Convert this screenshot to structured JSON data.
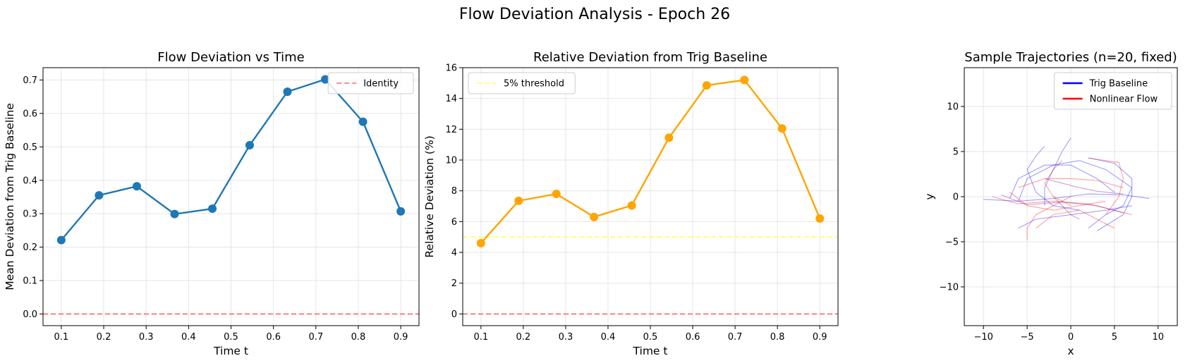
{
  "figure": {
    "suptitle": "Flow Deviation Analysis - Epoch 26"
  },
  "chart_data": [
    {
      "type": "line",
      "title": "Flow Deviation vs Time",
      "xlabel": "Time t",
      "ylabel": "Mean Deviation from Trig Baseline",
      "xlim": [
        0.057,
        0.943
      ],
      "ylim": [
        -0.035,
        0.737
      ],
      "xticks": [
        0.1,
        0.2,
        0.3,
        0.4,
        0.5,
        0.6,
        0.7,
        0.8,
        0.9
      ],
      "yticks": [
        0.0,
        0.1,
        0.2,
        0.3,
        0.4,
        0.5,
        0.6,
        0.7
      ],
      "xticklabels": [
        "0.1",
        "0.2",
        "0.3",
        "0.4",
        "0.5",
        "0.6",
        "0.7",
        "0.8",
        "0.9"
      ],
      "yticklabels": [
        "0.0",
        "0.1",
        "0.2",
        "0.3",
        "0.4",
        "0.5",
        "0.6",
        "0.7"
      ],
      "grid": true,
      "legend_position": "top-right",
      "series": [
        {
          "name": "",
          "color": "#1f77b4",
          "x": [
            0.1,
            0.189,
            0.278,
            0.367,
            0.456,
            0.544,
            0.633,
            0.722,
            0.811,
            0.9
          ],
          "y": [
            0.221,
            0.355,
            0.382,
            0.299,
            0.315,
            0.505,
            0.665,
            0.702,
            0.575,
            0.307
          ]
        }
      ],
      "reference_lines": [
        {
          "name": "Identity",
          "y": 0.0,
          "color": "#ff6666",
          "style": "dashed"
        }
      ],
      "legend": [
        "Identity"
      ]
    },
    {
      "type": "line",
      "title": "Relative Deviation from Trig Baseline",
      "xlabel": "Time t",
      "ylabel": "Relative Deviation (%)",
      "xlim": [
        0.057,
        0.943
      ],
      "ylim": [
        -0.76,
        16.0
      ],
      "xticks": [
        0.1,
        0.2,
        0.3,
        0.4,
        0.5,
        0.6,
        0.7,
        0.8,
        0.9
      ],
      "yticks": [
        0,
        2,
        4,
        6,
        8,
        10,
        12,
        14,
        16
      ],
      "xticklabels": [
        "0.1",
        "0.2",
        "0.3",
        "0.4",
        "0.5",
        "0.6",
        "0.7",
        "0.8",
        "0.9"
      ],
      "yticklabels": [
        "0",
        "2",
        "4",
        "6",
        "8",
        "10",
        "12",
        "14",
        "16"
      ],
      "grid": true,
      "legend_position": "top-left",
      "series": [
        {
          "name": "",
          "color": "#ffa500",
          "x": [
            0.1,
            0.189,
            0.278,
            0.367,
            0.456,
            0.544,
            0.633,
            0.722,
            0.811,
            0.9
          ],
          "y": [
            4.6,
            7.35,
            7.8,
            6.3,
            7.05,
            11.45,
            14.85,
            15.2,
            12.05,
            6.2
          ]
        }
      ],
      "reference_lines": [
        {
          "name": "5% threshold",
          "y": 5.0,
          "color": "#ffff66",
          "style": "dashed"
        },
        {
          "name": "",
          "y": 0.0,
          "color": "#ff6666",
          "style": "dashed"
        }
      ],
      "legend": [
        "5% threshold"
      ]
    },
    {
      "type": "line",
      "title": "Sample Trajectories (n=20, fixed)",
      "xlabel": "x",
      "ylabel": "y",
      "xlim": [
        -12.2,
        12.2
      ],
      "ylim": [
        -14.3,
        14.3
      ],
      "xticks": [
        -10,
        -5,
        0,
        5,
        10
      ],
      "yticks": [
        -10,
        -5,
        0,
        5,
        10
      ],
      "xticklabels": [
        "−10",
        "−5",
        "0",
        "5",
        "10"
      ],
      "yticklabels": [
        "−10",
        "−5",
        "0",
        "5",
        "10"
      ],
      "grid": true,
      "aspect": "equal",
      "legend_position": "top-right",
      "legend": [
        "Trig Baseline",
        "Nonlinear Flow"
      ],
      "legend_colors": [
        "#0000ff",
        "#ff0000"
      ],
      "series": [
        {
          "name": "Trig Baseline",
          "color": "#0000ff",
          "paths": [
            [
              [
                -10,
                -0.3
              ],
              [
                -6,
                -0.5
              ],
              [
                -2,
                -0.2
              ],
              [
                2,
                0.3
              ],
              [
                6,
                0.2
              ],
              [
                9,
                -0.2
              ]
            ],
            [
              [
                -6,
                -0.5
              ],
              [
                -5,
                2
              ],
              [
                -2,
                3.5
              ],
              [
                1,
                4
              ],
              [
                4,
                3
              ],
              [
                7,
                1
              ],
              [
                6,
                -1
              ],
              [
                4,
                -2
              ],
              [
                2,
                -3.5
              ]
            ],
            [
              [
                -6,
                -3.5
              ],
              [
                -4,
                -2.5
              ],
              [
                0,
                -2
              ],
              [
                4,
                -1.5
              ],
              [
                7,
                -1
              ]
            ],
            [
              [
                -3,
                5.6
              ],
              [
                -4,
                4.5
              ],
              [
                -5,
                3
              ],
              [
                -4,
                0.5
              ],
              [
                -2,
                -1
              ],
              [
                1,
                -1.5
              ]
            ],
            [
              [
                0,
                6.5
              ],
              [
                -1,
                5
              ],
              [
                -2,
                3
              ],
              [
                -3,
                1
              ],
              [
                -3,
                -1
              ]
            ],
            [
              [
                -7,
                -0.2
              ],
              [
                -6,
                2
              ],
              [
                -3,
                3.5
              ],
              [
                0,
                3.5
              ],
              [
                3,
                2
              ],
              [
                5,
                0.5
              ]
            ],
            [
              [
                2,
                4.3
              ],
              [
                5,
                3.7
              ],
              [
                7,
                2
              ],
              [
                7,
                0
              ],
              [
                6,
                -2
              ],
              [
                3,
                -3.8
              ]
            ]
          ]
        },
        {
          "name": "Nonlinear Flow",
          "color": "#ff0000",
          "paths": [
            [
              [
                -9,
                0
              ],
              [
                -6,
                -0.8
              ],
              [
                -2,
                -0.5
              ],
              [
                2,
                -0.8
              ],
              [
                5,
                -1.5
              ],
              [
                7,
                -2
              ]
            ],
            [
              [
                -5,
                -4.8
              ],
              [
                -5,
                -3.5
              ],
              [
                -4,
                -2
              ],
              [
                -2,
                -1
              ],
              [
                0,
                0
              ]
            ],
            [
              [
                -6,
                1
              ],
              [
                -3,
                2
              ],
              [
                0,
                2
              ],
              [
                3,
                1.8
              ],
              [
                6,
                1
              ]
            ],
            [
              [
                2,
                4.3
              ],
              [
                4,
                4
              ],
              [
                5.5,
                3.8
              ],
              [
                6,
                2
              ],
              [
                5.5,
                0
              ],
              [
                4,
                -2
              ]
            ],
            [
              [
                -4,
                -3.5
              ],
              [
                -2,
                -2
              ],
              [
                1,
                -1.5
              ],
              [
                3,
                -2.5
              ],
              [
                5,
                -3.5
              ]
            ],
            [
              [
                -7,
                0.5
              ],
              [
                -5,
                -1
              ],
              [
                -2,
                -1.5
              ],
              [
                1,
                -1
              ],
              [
                4,
                -0.5
              ]
            ],
            [
              [
                -1,
                4
              ],
              [
                -2,
                3
              ],
              [
                -3,
                1.5
              ],
              [
                -2,
                0
              ],
              [
                0,
                -1
              ]
            ]
          ]
        },
        {
          "name": "",
          "color": "#800080",
          "paths": [
            [
              [
                -8,
                0.2
              ],
              [
                -5,
                -0.9
              ],
              [
                -1,
                -0.6
              ],
              [
                3,
                -1
              ],
              [
                6,
                -1.8
              ]
            ],
            [
              [
                -3,
                2
              ],
              [
                -1,
                1.5
              ],
              [
                1,
                1
              ],
              [
                3,
                0.6
              ],
              [
                6,
                0.3
              ]
            ],
            [
              [
                -2,
                0
              ],
              [
                -1,
                -1
              ],
              [
                0,
                -2
              ],
              [
                1,
                -2.5
              ]
            ]
          ]
        }
      ]
    }
  ]
}
